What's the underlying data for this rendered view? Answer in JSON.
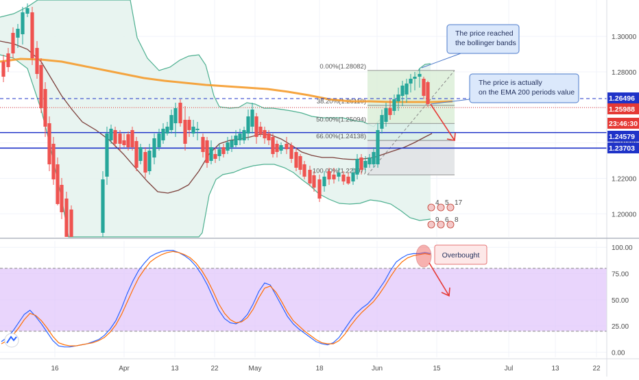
{
  "chart_data": [
    {
      "type": "candlestick",
      "panel": "price",
      "x_tick_labels": [
        "16",
        "Apr",
        "13",
        "22",
        "May",
        "18",
        "Jun",
        "15",
        "Jul",
        "13",
        "22"
      ],
      "y_ticks": [
        1.2,
        1.22,
        1.24,
        1.26,
        1.28,
        1.3
      ],
      "y_tick_labels": [
        "1.20000",
        "1.22000",
        "1.24000",
        "1.26000",
        "1.28000",
        "1.30000"
      ],
      "ylim": [
        1.187,
        1.3205
      ],
      "price_tags": [
        {
          "label": "1.26496",
          "value": 1.26496,
          "color": "#1f33c8"
        },
        {
          "label": "1.25988",
          "value": 1.25988,
          "color": "#e53935"
        },
        {
          "label": "23:46:30",
          "value": 1.2538,
          "color": "#e53935"
        },
        {
          "label": "1.24579",
          "value": 1.24579,
          "color": "#1f33c8"
        },
        {
          "label": "1.23703",
          "value": 1.23703,
          "color": "#1f33c8"
        }
      ],
      "horizontal_lines": [
        {
          "value": 1.26496,
          "style": "dashed",
          "color": "#1f33c8"
        },
        {
          "value": 1.25988,
          "style": "dotted",
          "color": "#e53935"
        },
        {
          "value": 1.24579,
          "style": "solid",
          "color": "#1f33c8"
        },
        {
          "value": 1.23703,
          "style": "solid",
          "color": "#1f33c8"
        }
      ],
      "fibonacci": [
        {
          "label": "0.00%(1.28082)",
          "value": 1.28082
        },
        {
          "label": "38.20%(1.26110)",
          "value": 1.2611
        },
        {
          "label": "50.00%(1.25094)",
          "value": 1.25094
        },
        {
          "label": "66.00%(1.24138)",
          "value": 1.24138
        },
        {
          "label": "100.00%(1.22197)",
          "value": 1.22197
        }
      ],
      "annotations": [
        {
          "lines": [
            "The price reached",
            "the bollinger bands"
          ]
        },
        {
          "lines": [
            "The price is actually",
            "on the EMA 200 periods value"
          ]
        }
      ],
      "events": [
        "4",
        "5",
        "17",
        "9",
        "6",
        "8"
      ],
      "indicators": [
        "Bollinger Bands",
        "EMA 200",
        "SMA"
      ],
      "colors": {
        "up": "#26a69a",
        "down": "#ef5350",
        "ema": "#f59b2b",
        "band": "#4caf8f",
        "sma": "#7b3f3a"
      }
    },
    {
      "type": "line",
      "panel": "stochastic",
      "y_ticks": [
        0,
        25,
        50,
        75,
        100
      ],
      "y_tick_labels": [
        "0.00",
        "25.00",
        "50.00",
        "75.00",
        "100.00"
      ],
      "ylim": [
        -5,
        106
      ],
      "band": [
        20,
        80
      ],
      "band_color": "#e1c7fb",
      "series": [
        {
          "color": "#2962ff",
          "values": [
            10,
            14,
            20,
            28,
            36,
            40,
            34,
            27,
            19,
            11,
            6,
            5,
            5,
            6,
            7,
            8,
            10,
            12,
            16,
            22,
            30,
            42,
            56,
            68,
            78,
            85,
            91,
            94,
            96,
            97,
            97,
            95,
            92,
            88,
            82,
            74,
            64,
            52,
            40,
            32,
            28,
            27,
            30,
            36,
            46,
            58,
            66,
            64,
            54,
            44,
            34,
            27,
            22,
            18,
            14,
            10,
            8,
            7,
            9,
            14,
            22,
            30,
            37,
            42,
            46,
            52,
            60,
            68,
            78,
            86,
            90,
            93,
            94,
            94,
            95,
            94
          ]
        },
        {
          "color": "#ff6d00",
          "values": [
            8,
            11,
            16,
            23,
            31,
            37,
            35,
            30,
            23,
            15,
            9,
            7,
            6,
            6,
            7,
            8,
            9,
            11,
            14,
            19,
            26,
            36,
            48,
            60,
            71,
            79,
            86,
            90,
            93,
            95,
            96,
            95,
            93,
            90,
            85,
            78,
            69,
            58,
            46,
            37,
            31,
            28,
            29,
            33,
            41,
            52,
            61,
            63,
            57,
            48,
            38,
            30,
            25,
            20,
            16,
            12,
            9,
            8,
            8,
            11,
            17,
            25,
            32,
            38,
            43,
            48,
            55,
            63,
            72,
            80,
            86,
            90,
            92,
            93,
            94,
            93
          ]
        }
      ],
      "annotations": [
        {
          "text": "Overbought"
        }
      ]
    }
  ]
}
